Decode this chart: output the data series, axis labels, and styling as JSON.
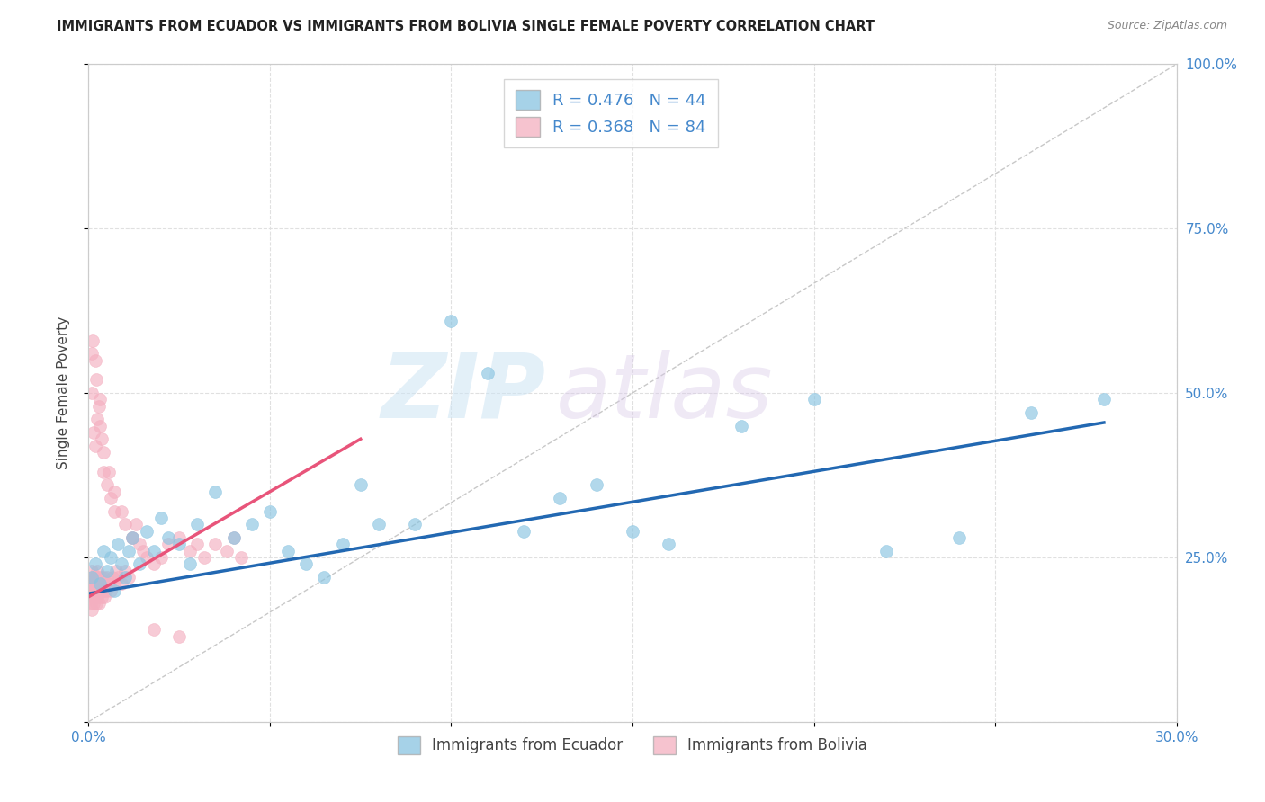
{
  "title": "IMMIGRANTS FROM ECUADOR VS IMMIGRANTS FROM BOLIVIA SINGLE FEMALE POVERTY CORRELATION CHART",
  "source": "Source: ZipAtlas.com",
  "ylabel": "Single Female Poverty",
  "xlim": [
    0,
    0.3
  ],
  "ylim": [
    0,
    1.0
  ],
  "background_color": "#ffffff",
  "grid_color": "#e0e0e0",
  "watermark_zip": "ZIP",
  "watermark_atlas": "atlas",
  "ecuador_color": "#89c4e1",
  "ecuador_edge": "#89c4e1",
  "bolivia_color": "#f4afc0",
  "bolivia_edge": "#f4afc0",
  "ecuador_line_color": "#2268b2",
  "bolivia_line_color": "#e8547a",
  "legend_ecuador_label": "R = 0.476   N = 44",
  "legend_bolivia_label": "R = 0.368   N = 84",
  "bottom_ecuador_label": "Immigrants from Ecuador",
  "bottom_bolivia_label": "Immigrants from Bolivia",
  "ecuador_trend_x0": 0.0,
  "ecuador_trend_y0": 0.195,
  "ecuador_trend_x1": 0.28,
  "ecuador_trend_y1": 0.455,
  "bolivia_trend_x0": 0.0,
  "bolivia_trend_y0": 0.19,
  "bolivia_trend_x1": 0.075,
  "bolivia_trend_y1": 0.43,
  "ecuador_points_x": [
    0.001,
    0.002,
    0.003,
    0.004,
    0.005,
    0.006,
    0.007,
    0.008,
    0.009,
    0.01,
    0.011,
    0.012,
    0.014,
    0.016,
    0.018,
    0.02,
    0.022,
    0.025,
    0.028,
    0.03,
    0.035,
    0.04,
    0.045,
    0.05,
    0.055,
    0.06,
    0.065,
    0.07,
    0.075,
    0.08,
    0.09,
    0.1,
    0.11,
    0.12,
    0.13,
    0.14,
    0.15,
    0.16,
    0.18,
    0.2,
    0.22,
    0.24,
    0.26,
    0.28
  ],
  "ecuador_points_y": [
    0.22,
    0.24,
    0.21,
    0.26,
    0.23,
    0.25,
    0.2,
    0.27,
    0.24,
    0.22,
    0.26,
    0.28,
    0.24,
    0.29,
    0.26,
    0.31,
    0.28,
    0.27,
    0.24,
    0.3,
    0.35,
    0.28,
    0.3,
    0.32,
    0.26,
    0.24,
    0.22,
    0.27,
    0.36,
    0.3,
    0.3,
    0.61,
    0.53,
    0.29,
    0.34,
    0.36,
    0.29,
    0.27,
    0.45,
    0.49,
    0.26,
    0.28,
    0.47,
    0.49
  ],
  "bolivia_points_x": [
    0.0003,
    0.0005,
    0.0006,
    0.0007,
    0.0008,
    0.0009,
    0.001,
    0.0012,
    0.0013,
    0.0014,
    0.0015,
    0.0016,
    0.0017,
    0.0018,
    0.0019,
    0.002,
    0.0021,
    0.0022,
    0.0023,
    0.0024,
    0.0025,
    0.0026,
    0.0027,
    0.0028,
    0.003,
    0.0032,
    0.0034,
    0.0036,
    0.0038,
    0.004,
    0.0042,
    0.0044,
    0.0046,
    0.0048,
    0.005,
    0.0055,
    0.006,
    0.0065,
    0.007,
    0.0075,
    0.008,
    0.009,
    0.01,
    0.011,
    0.012,
    0.013,
    0.014,
    0.015,
    0.016,
    0.018,
    0.02,
    0.022,
    0.025,
    0.028,
    0.03,
    0.032,
    0.035,
    0.038,
    0.04,
    0.042,
    0.001,
    0.0015,
    0.002,
    0.0025,
    0.003,
    0.0035,
    0.004,
    0.005,
    0.006,
    0.007,
    0.001,
    0.0012,
    0.0018,
    0.0022,
    0.0028,
    0.0032,
    0.0042,
    0.0055,
    0.007,
    0.009,
    0.01,
    0.012,
    0.018,
    0.025
  ],
  "bolivia_points_y": [
    0.19,
    0.21,
    0.18,
    0.2,
    0.22,
    0.17,
    0.23,
    0.2,
    0.19,
    0.21,
    0.18,
    0.22,
    0.2,
    0.19,
    0.21,
    0.2,
    0.22,
    0.18,
    0.23,
    0.19,
    0.21,
    0.2,
    0.22,
    0.18,
    0.21,
    0.2,
    0.22,
    0.19,
    0.21,
    0.2,
    0.22,
    0.19,
    0.21,
    0.2,
    0.22,
    0.21,
    0.2,
    0.22,
    0.21,
    0.23,
    0.22,
    0.21,
    0.23,
    0.22,
    0.28,
    0.3,
    0.27,
    0.26,
    0.25,
    0.24,
    0.25,
    0.27,
    0.28,
    0.26,
    0.27,
    0.25,
    0.27,
    0.26,
    0.28,
    0.25,
    0.5,
    0.44,
    0.42,
    0.46,
    0.49,
    0.43,
    0.38,
    0.36,
    0.34,
    0.32,
    0.56,
    0.58,
    0.55,
    0.52,
    0.48,
    0.45,
    0.41,
    0.38,
    0.35,
    0.32,
    0.3,
    0.28,
    0.14,
    0.13
  ]
}
